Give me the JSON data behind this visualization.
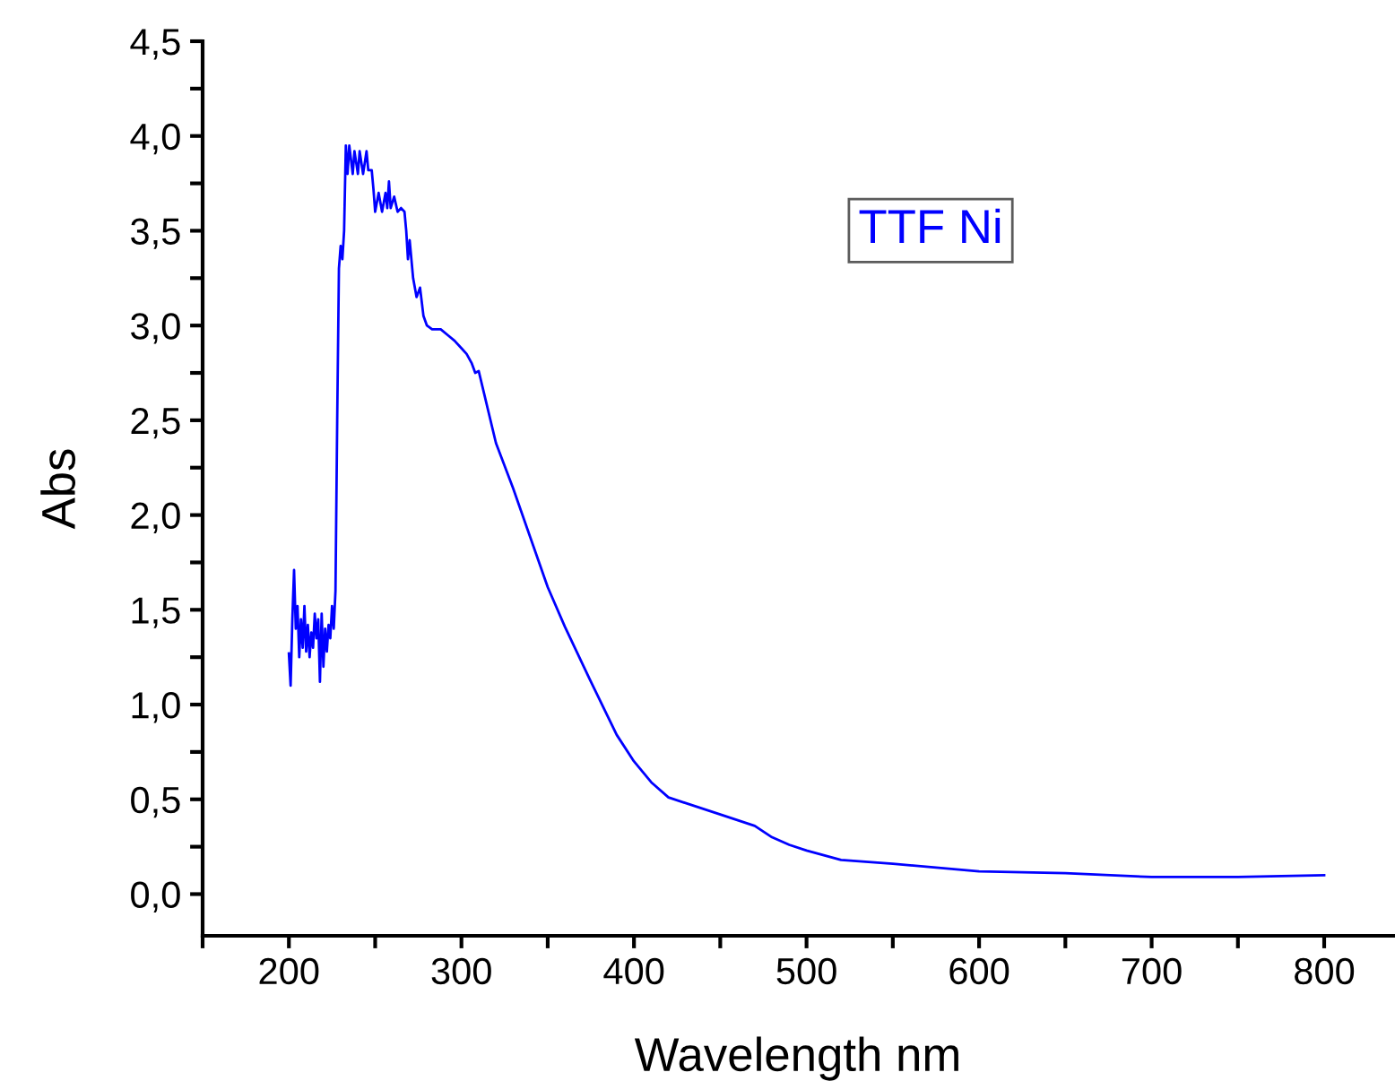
{
  "chart_data": {
    "type": "line",
    "xlabel": "Wavelength nm",
    "ylabel": "Abs",
    "xlim": [
      150,
      840
    ],
    "ylim": [
      -0.22,
      4.5
    ],
    "xticks": [
      {
        "value": 150,
        "label": null
      },
      200,
      {
        "value": 250,
        "label": null
      },
      300,
      {
        "value": 350,
        "label": null
      },
      400,
      {
        "value": 450,
        "label": null
      },
      500,
      {
        "value": 550,
        "label": null
      },
      600,
      {
        "value": 650,
        "label": null
      },
      700,
      {
        "value": 750,
        "label": null
      },
      800
    ],
    "yticks": [
      {
        "value": 0,
        "label": "0,0"
      },
      {
        "value": 0.25,
        "label": null
      },
      {
        "value": 0.5,
        "label": "0,5"
      },
      {
        "value": 0.75,
        "label": null
      },
      {
        "value": 1,
        "label": "1,0"
      },
      {
        "value": 1.25,
        "label": null
      },
      {
        "value": 1.5,
        "label": "1,5"
      },
      {
        "value": 1.75,
        "label": null
      },
      {
        "value": 2,
        "label": "2,0"
      },
      {
        "value": 2.25,
        "label": null
      },
      {
        "value": 2.5,
        "label": "2,5"
      },
      {
        "value": 2.75,
        "label": null
      },
      {
        "value": 3,
        "label": "3,0"
      },
      {
        "value": 3.25,
        "label": null
      },
      {
        "value": 3.5,
        "label": "3,5"
      },
      {
        "value": 3.75,
        "label": null
      },
      {
        "value": 4,
        "label": "4,0"
      },
      {
        "value": 4.25,
        "label": null
      },
      {
        "value": 4.5,
        "label": "4,5"
      }
    ],
    "grid": false,
    "legend": "top right",
    "marker": "none",
    "line_style": "solid",
    "series": [
      {
        "name": "TTF Ni",
        "color": "#0000ff",
        "x": [
          200,
          201,
          202,
          203,
          204,
          205,
          206,
          207,
          208,
          209,
          210,
          211,
          212,
          213,
          214,
          215,
          216,
          217,
          218,
          219,
          220,
          221,
          222,
          223,
          224,
          225,
          226,
          227,
          228,
          229,
          230,
          231,
          232,
          233,
          234,
          235,
          237,
          238,
          240,
          241,
          243,
          245,
          246,
          248,
          249,
          250,
          252,
          254,
          256,
          257,
          258,
          259,
          261,
          263,
          265,
          267,
          268,
          269,
          270,
          272,
          274,
          276,
          278,
          280,
          283,
          288,
          292,
          296,
          300,
          303,
          306,
          308,
          310,
          320,
          330,
          340,
          350,
          360,
          374,
          390,
          400,
          410,
          420,
          450,
          470,
          480,
          490,
          500,
          520,
          550,
          600,
          650,
          700,
          750,
          800
        ],
        "values": [
          1.27,
          1.1,
          1.45,
          1.71,
          1.4,
          1.52,
          1.25,
          1.45,
          1.3,
          1.52,
          1.28,
          1.42,
          1.25,
          1.38,
          1.3,
          1.48,
          1.35,
          1.45,
          1.12,
          1.48,
          1.2,
          1.4,
          1.28,
          1.42,
          1.35,
          1.52,
          1.4,
          1.6,
          2.5,
          3.3,
          3.42,
          3.35,
          3.5,
          3.95,
          3.8,
          3.95,
          3.8,
          3.92,
          3.8,
          3.92,
          3.8,
          3.92,
          3.82,
          3.82,
          3.72,
          3.6,
          3.7,
          3.6,
          3.7,
          3.62,
          3.76,
          3.62,
          3.68,
          3.6,
          3.62,
          3.6,
          3.5,
          3.35,
          3.45,
          3.25,
          3.15,
          3.2,
          3.05,
          3.0,
          2.98,
          2.98,
          2.95,
          2.92,
          2.88,
          2.85,
          2.8,
          2.75,
          2.76,
          2.38,
          2.14,
          1.88,
          1.62,
          1.41,
          1.14,
          0.84,
          0.7,
          0.59,
          0.51,
          0.42,
          0.36,
          0.3,
          0.26,
          0.23,
          0.18,
          0.16,
          0.12,
          0.11,
          0.09,
          0.09,
          0.1
        ]
      }
    ]
  }
}
